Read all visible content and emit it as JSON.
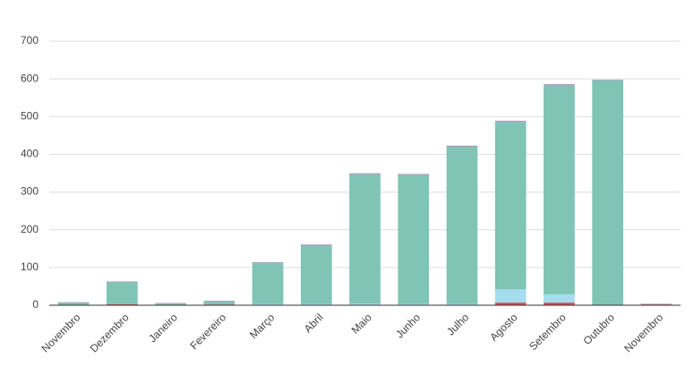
{
  "chart_data": {
    "type": "stacked_bar",
    "categories": [
      "Novembro",
      "Dezembro",
      "Janeiro",
      "Fevereiro",
      "Março",
      "Abril",
      "Maio",
      "Junho",
      "Julho",
      "Agosto",
      "Setembro",
      "Outubro",
      "Novembro"
    ],
    "series": [
      {
        "color": "#d9534f",
        "values": [
          0,
          3,
          0,
          2,
          1,
          1,
          1,
          1,
          1,
          7,
          7,
          0,
          2
        ]
      },
      {
        "color": "#a6dcef",
        "values": [
          0,
          0,
          0,
          0,
          2,
          2,
          3,
          2,
          2,
          35,
          22,
          1,
          0
        ]
      },
      {
        "color": "#7fc4b5",
        "values": [
          6,
          58,
          4,
          8,
          108,
          155,
          343,
          342,
          417,
          444,
          553,
          595,
          0
        ]
      },
      {
        "color": "#a59ab8",
        "values": [
          2,
          2,
          2,
          2,
          3,
          3,
          3,
          3,
          3,
          3,
          4,
          2,
          2
        ]
      }
    ],
    "ylim": [
      0,
      700
    ],
    "yticks": [
      0,
      100,
      200,
      300,
      400,
      500,
      600,
      700
    ],
    "grid": true
  }
}
